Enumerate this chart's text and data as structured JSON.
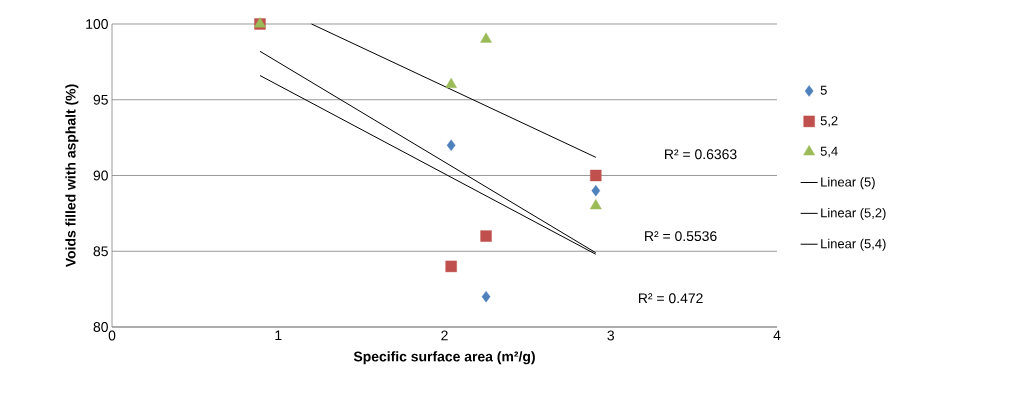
{
  "chart_data": {
    "type": "scatter",
    "xlabel": "Specific surface area (m²/g)",
    "ylabel": "Voids filled with asphalt (%)",
    "x": [
      0.89,
      2.04,
      2.25,
      2.91
    ],
    "series": [
      {
        "name": "5",
        "color": "#4f81bd",
        "marker": "diamond",
        "values": [
          null,
          92,
          82,
          89
        ]
      },
      {
        "name": "5,2",
        "color": "#c0504d",
        "marker": "square",
        "values": [
          100,
          84,
          86,
          90
        ]
      },
      {
        "name": "5,4",
        "color": "#9bbb59",
        "marker": "triangle",
        "values": [
          100,
          96,
          99,
          88
        ]
      },
      {
        "name": "Linear (5)",
        "type": "line",
        "color": "#000000",
        "marker": "none",
        "x": [
          0.89,
          2.91
        ],
        "values": [
          98.2,
          84.9
        ]
      },
      {
        "name": "Linear (5,2)",
        "type": "line",
        "color": "#000000",
        "marker": "none",
        "x": [
          0.89,
          2.91
        ],
        "values": [
          96.6,
          84.8
        ]
      },
      {
        "name": "Linear (5,4)",
        "type": "line",
        "color": "#000000",
        "marker": "none",
        "x": [
          1.2,
          2.91
        ],
        "values": [
          100,
          91.2
        ]
      }
    ],
    "xlim": [
      0,
      4
    ],
    "ylim": [
      80,
      100
    ],
    "xticks": [
      0,
      1,
      2,
      3,
      4
    ],
    "yticks": [
      80,
      85,
      90,
      95,
      100
    ],
    "grid": "y",
    "legend": "right",
    "annotations": [
      "R² = 0.6363",
      "R² = 0.5536",
      "R² = 0.472"
    ]
  }
}
